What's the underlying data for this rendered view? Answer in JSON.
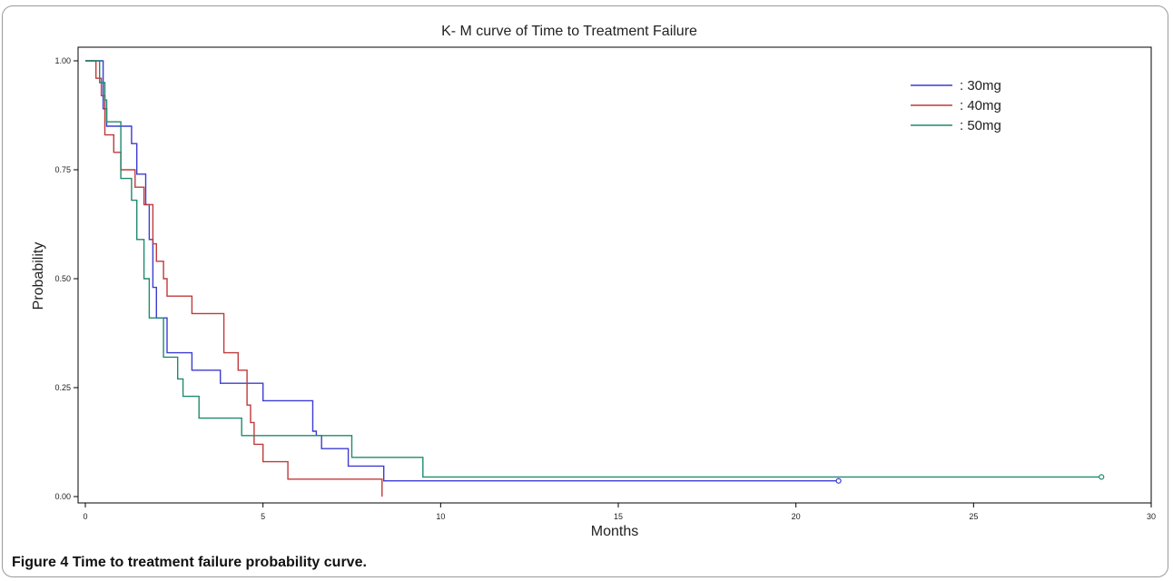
{
  "caption": {
    "figure_label": "Figure 4",
    "text": "Time to treatment failure probability curve."
  },
  "chart_data": {
    "type": "line",
    "title": "K- M curve of Time to Treatment Failure",
    "xlabel": "Months",
    "ylabel": "Probability",
    "xlim": [
      0,
      30
    ],
    "ylim": [
      0,
      1
    ],
    "x_ticks": [
      "0",
      "5",
      "10",
      "15",
      "20",
      "25",
      "30"
    ],
    "y_ticks": [
      "0.00",
      "0.25",
      "0.50",
      "0.75",
      "1.00"
    ],
    "x_tick_values": [
      0,
      5,
      10,
      15,
      20,
      25,
      30
    ],
    "y_tick_values": [
      0,
      0.25,
      0.5,
      0.75,
      1
    ],
    "grid": false,
    "legend_position": "top-right",
    "series": [
      {
        "name": ": 30mg",
        "color": "#3c3cd2",
        "censored_end": true,
        "x": [
          0,
          0.5,
          0.5,
          0.6,
          0.6,
          0.75,
          0.75,
          1.3,
          1.3,
          1.45,
          1.45,
          1.7,
          1.7,
          1.8,
          1.8,
          1.9,
          1.9,
          2.0,
          2.0,
          2.1,
          2.1,
          2.3,
          2.3,
          3.0,
          3.0,
          3.8,
          3.8,
          5.0,
          5.0,
          6.4,
          6.4,
          6.5,
          6.5,
          6.65,
          6.65,
          7.4,
          7.4,
          8.4,
          8.4,
          21.2
        ],
        "y": [
          1.0,
          1.0,
          0.89,
          0.89,
          0.85,
          0.85,
          0.85,
          0.85,
          0.81,
          0.81,
          0.74,
          0.74,
          0.67,
          0.67,
          0.59,
          0.59,
          0.48,
          0.48,
          0.41,
          0.41,
          0.41,
          0.41,
          0.33,
          0.33,
          0.29,
          0.29,
          0.26,
          0.26,
          0.22,
          0.22,
          0.15,
          0.15,
          0.14,
          0.14,
          0.11,
          0.11,
          0.07,
          0.07,
          0.036,
          0.036
        ]
      },
      {
        "name": ": 40mg",
        "color": "#c03a3a",
        "censored_end": false,
        "x": [
          0,
          0.3,
          0.3,
          0.45,
          0.45,
          0.55,
          0.55,
          0.8,
          0.8,
          1.0,
          1.0,
          1.4,
          1.4,
          1.65,
          1.65,
          1.9,
          1.9,
          2.0,
          2.0,
          2.2,
          2.2,
          2.3,
          2.3,
          2.5,
          2.5,
          3.0,
          3.0,
          3.9,
          3.9,
          4.3,
          4.3,
          4.55,
          4.55,
          4.65,
          4.65,
          4.75,
          4.75,
          5.0,
          5.0,
          5.7,
          5.7,
          6.6,
          6.6,
          8.35,
          8.35
        ],
        "y": [
          1.0,
          1.0,
          0.96,
          0.96,
          0.92,
          0.92,
          0.83,
          0.83,
          0.79,
          0.79,
          0.75,
          0.75,
          0.71,
          0.71,
          0.67,
          0.67,
          0.58,
          0.58,
          0.54,
          0.54,
          0.5,
          0.5,
          0.46,
          0.46,
          0.46,
          0.46,
          0.42,
          0.42,
          0.33,
          0.33,
          0.29,
          0.29,
          0.21,
          0.21,
          0.17,
          0.17,
          0.12,
          0.12,
          0.08,
          0.08,
          0.04,
          0.04,
          0.04,
          0.04,
          0.0
        ]
      },
      {
        "name": ": 50mg",
        "color": "#1f8a6e",
        "censored_end": true,
        "x": [
          0,
          0.4,
          0.4,
          0.55,
          0.55,
          0.6,
          0.6,
          0.75,
          0.75,
          1.0,
          1.0,
          1.3,
          1.3,
          1.45,
          1.45,
          1.65,
          1.65,
          1.8,
          1.8,
          1.95,
          1.95,
          2.2,
          2.2,
          2.5,
          2.5,
          2.6,
          2.6,
          2.75,
          2.75,
          3.2,
          3.2,
          4.4,
          4.4,
          7.5,
          7.5,
          9.5,
          9.5,
          28.6
        ],
        "y": [
          1.0,
          1.0,
          0.95,
          0.95,
          0.91,
          0.91,
          0.86,
          0.86,
          0.86,
          0.86,
          0.73,
          0.73,
          0.68,
          0.68,
          0.59,
          0.59,
          0.5,
          0.5,
          0.41,
          0.41,
          0.41,
          0.41,
          0.32,
          0.32,
          0.32,
          0.32,
          0.27,
          0.27,
          0.23,
          0.23,
          0.18,
          0.18,
          0.14,
          0.14,
          0.09,
          0.09,
          0.045,
          0.045
        ]
      }
    ]
  }
}
